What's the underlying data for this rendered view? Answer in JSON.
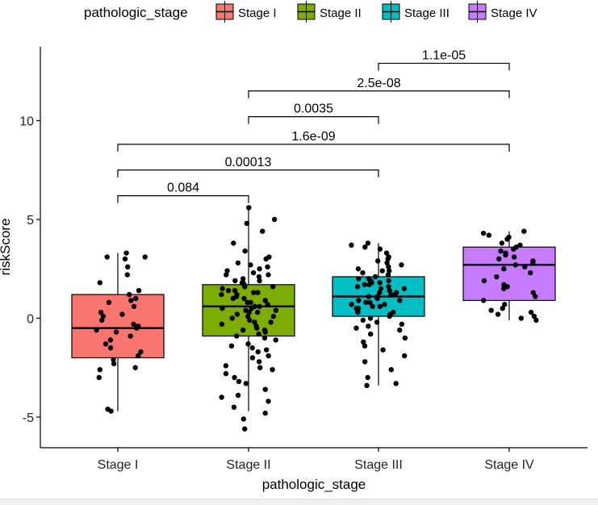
{
  "chart_data": {
    "type": "boxplot",
    "xlabel": "pathologic_stage",
    "ylabel": "riskScore",
    "categories": [
      "Stage I",
      "Stage II",
      "Stage III",
      "Stage IV"
    ],
    "colors": [
      "#F8766D",
      "#7CAE00",
      "#00BFC4",
      "#C77CFF"
    ],
    "ylim": [
      -6.5,
      14.0
    ],
    "yticks": [
      -5,
      0,
      5,
      10
    ],
    "legend": {
      "title": "pathologic_stage",
      "position": "top",
      "labels": [
        "Stage I",
        "Stage II",
        "Stage III",
        "Stage IV"
      ]
    },
    "boxes": [
      {
        "name": "Stage I",
        "min": -4.7,
        "q1": -2.0,
        "median": -0.5,
        "q3": 1.2,
        "max": 3.3
      },
      {
        "name": "Stage II",
        "min": -4.7,
        "q1": -0.9,
        "median": 0.6,
        "q3": 1.7,
        "max": 5.6
      },
      {
        "name": "Stage III",
        "min": -3.4,
        "q1": 0.1,
        "median": 1.1,
        "q3": 2.1,
        "max": 3.8
      },
      {
        "name": "Stage IV",
        "min": -0.1,
        "q1": 0.9,
        "median": 2.7,
        "q3": 3.6,
        "max": 4.4
      }
    ],
    "points": [
      {
        "name": "Stage I",
        "values": [
          3.3,
          3.1,
          3.0,
          3.1,
          2.6,
          2.2,
          1.8,
          1.4,
          1.2,
          1.0,
          0.9,
          0.8,
          0.6,
          0.3,
          0.2,
          0.1,
          -0.1,
          -0.3,
          -0.4,
          -0.5,
          -0.6,
          -0.7,
          -0.9,
          -1.1,
          -1.3,
          -1.5,
          -1.7,
          -1.9,
          -2.1,
          -2.3,
          -2.5,
          -2.6,
          -3.0,
          -4.6,
          -4.7
        ]
      },
      {
        "name": "Stage II",
        "values": [
          5.6,
          5.0,
          4.8,
          4.4,
          3.8,
          3.4,
          3.1,
          3.0,
          2.8,
          2.7,
          2.6,
          2.5,
          2.4,
          2.3,
          2.2,
          2.1,
          2.0,
          1.9,
          1.9,
          1.8,
          1.8,
          1.7,
          1.6,
          1.6,
          1.5,
          1.4,
          1.4,
          1.3,
          1.2,
          1.2,
          1.1,
          1.0,
          1.0,
          0.9,
          0.8,
          0.8,
          0.7,
          0.6,
          0.6,
          0.5,
          0.5,
          0.4,
          0.3,
          0.3,
          0.2,
          0.1,
          0.1,
          0.0,
          -0.1,
          -0.2,
          -0.2,
          -0.3,
          -0.4,
          -0.5,
          -0.6,
          -0.7,
          -0.8,
          -0.9,
          -1.0,
          -1.1,
          -1.3,
          -1.4,
          -1.5,
          -1.7,
          -1.9,
          -2.0,
          -2.2,
          -2.4,
          -2.6,
          -2.8,
          -3.0,
          -3.3,
          -3.6,
          -3.9,
          -4.2,
          -4.5,
          -4.8,
          -5.1,
          -5.6,
          -4.0,
          -3.2,
          -2.5,
          -1.6,
          -0.6,
          0.4,
          1.3,
          2.2
        ]
      },
      {
        "name": "Stage III",
        "values": [
          3.8,
          3.7,
          3.6,
          3.5,
          3.3,
          3.1,
          3.0,
          2.9,
          2.8,
          2.7,
          2.6,
          2.5,
          2.4,
          2.3,
          2.2,
          2.1,
          2.0,
          1.9,
          1.9,
          1.8,
          1.7,
          1.7,
          1.6,
          1.5,
          1.5,
          1.4,
          1.3,
          1.3,
          1.2,
          1.1,
          1.1,
          1.0,
          0.9,
          0.9,
          0.8,
          0.7,
          0.7,
          0.6,
          0.5,
          0.5,
          0.4,
          0.3,
          0.3,
          0.2,
          0.1,
          0.0,
          -0.1,
          -0.2,
          -0.3,
          -0.4,
          -0.5,
          -0.6,
          -0.8,
          -1.0,
          -1.2,
          -1.4,
          -1.6,
          -1.9,
          -2.2,
          -2.6,
          -3.0,
          -3.3,
          -3.4,
          1.8,
          1.2,
          0.6,
          2.4,
          1.6,
          0.8,
          2.0
        ]
      },
      {
        "name": "Stage IV",
        "values": [
          4.4,
          4.3,
          4.2,
          4.1,
          4.0,
          3.8,
          3.7,
          3.6,
          3.5,
          3.4,
          3.3,
          3.2,
          3.1,
          3.0,
          2.9,
          2.8,
          2.7,
          2.5,
          2.3,
          2.1,
          1.9,
          1.7,
          1.5,
          1.3,
          1.1,
          0.9,
          0.7,
          0.5,
          0.4,
          0.3,
          0.2,
          0.1,
          0.0,
          -0.1,
          2.6,
          1.6
        ]
      }
    ],
    "comparisons": [
      {
        "from": "Stage I",
        "to": "Stage II",
        "label": "0.084",
        "y": 6.2
      },
      {
        "from": "Stage I",
        "to": "Stage III",
        "label": "0.00013",
        "y": 7.5
      },
      {
        "from": "Stage I",
        "to": "Stage IV",
        "label": "1.6e-09",
        "y": 8.8
      },
      {
        "from": "Stage II",
        "to": "Stage III",
        "label": "0.0035",
        "y": 10.2
      },
      {
        "from": "Stage II",
        "to": "Stage IV",
        "label": "2.5e-08",
        "y": 11.5
      },
      {
        "from": "Stage III",
        "to": "Stage IV",
        "label": "1.1e-05",
        "y": 12.9
      }
    ]
  }
}
